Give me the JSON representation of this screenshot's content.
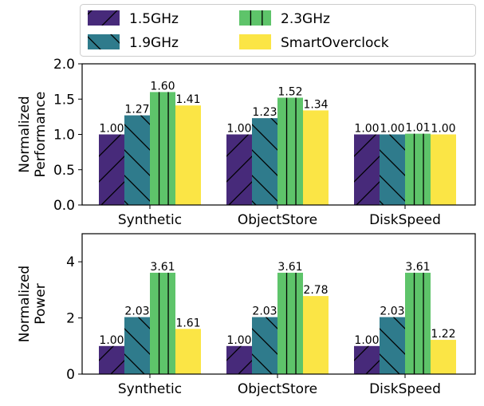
{
  "chart_data": [
    {
      "type": "bar",
      "title": "",
      "xlabel": "",
      "ylabel": "Normalized\nPerformance",
      "ylim": [
        0,
        2.0
      ],
      "yticks": [
        "0.0",
        "0.5",
        "1.0",
        "1.5",
        "2.0"
      ],
      "categories": [
        "Synthetic",
        "ObjectStore",
        "DiskSpeed"
      ],
      "series": [
        {
          "name": "1.5GHz",
          "values": [
            1.0,
            1.0,
            1.0
          ],
          "labels": [
            "1.00",
            "1.00",
            "1.00"
          ]
        },
        {
          "name": "1.9GHz",
          "values": [
            1.27,
            1.23,
            1.0
          ],
          "labels": [
            "1.27",
            "1.23",
            "1.00"
          ]
        },
        {
          "name": "2.3GHz",
          "values": [
            1.6,
            1.52,
            1.01
          ],
          "labels": [
            "1.60",
            "1.52",
            "1.01"
          ]
        },
        {
          "name": "SmartOverclock",
          "values": [
            1.41,
            1.34,
            1.0
          ],
          "labels": [
            "1.41",
            "1.34",
            "1.00"
          ]
        }
      ]
    },
    {
      "type": "bar",
      "title": "",
      "xlabel": "",
      "ylabel": "Normalized\nPower",
      "ylim": [
        0,
        5
      ],
      "yticks": [
        "0",
        "2",
        "4"
      ],
      "categories": [
        "Synthetic",
        "ObjectStore",
        "DiskSpeed"
      ],
      "series": [
        {
          "name": "1.5GHz",
          "values": [
            1.0,
            1.0,
            1.0
          ],
          "labels": [
            "1.00",
            "1.00",
            "1.00"
          ]
        },
        {
          "name": "1.9GHz",
          "values": [
            2.03,
            2.03,
            2.03
          ],
          "labels": [
            "2.03",
            "2.03",
            "2.03"
          ]
        },
        {
          "name": "2.3GHz",
          "values": [
            3.61,
            3.61,
            3.61
          ],
          "labels": [
            "3.61",
            "3.61",
            "3.61"
          ]
        },
        {
          "name": "SmartOverclock",
          "values": [
            1.61,
            2.78,
            1.22
          ],
          "labels": [
            "1.61",
            "2.78",
            "1.22"
          ]
        }
      ]
    }
  ],
  "legend": {
    "placement": "top",
    "entries": [
      "1.5GHz",
      "1.9GHz",
      "2.3GHz",
      "SmartOverclock"
    ]
  },
  "style": {
    "colors": [
      "#472a7a",
      "#2f7b8c",
      "#5ec46a",
      "#fbe545"
    ],
    "hatches": [
      "/",
      "\\",
      "|",
      ""
    ]
  }
}
